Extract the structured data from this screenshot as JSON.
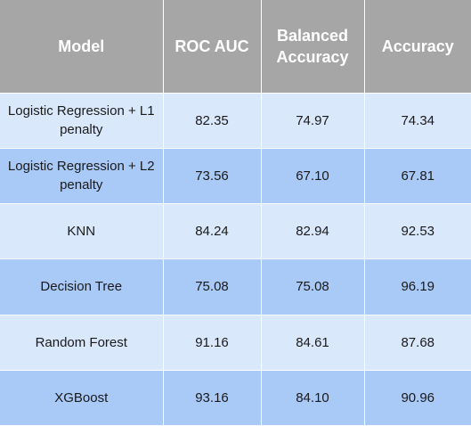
{
  "colors": {
    "header_bg": "#a6a6a6",
    "header_text": "#ffffff",
    "row_light": "#dae8fc",
    "row_dark": "#a9c9f7",
    "cell_text": "#1a1a1a"
  },
  "chart_data": {
    "type": "table",
    "columns": [
      "Model",
      "ROC AUC",
      "Balanced Accuracy",
      "Accuracy"
    ],
    "rows": [
      [
        "Logistic Regression + L1 penalty",
        "82.35",
        "74.97",
        "74.34"
      ],
      [
        "Logistic Regression + L2 penalty",
        "73.56",
        "67.10",
        "67.81"
      ],
      [
        "KNN",
        "84.24",
        "82.94",
        "92.53"
      ],
      [
        "Decision Tree",
        "75.08",
        "75.08",
        "96.19"
      ],
      [
        "Random Forest",
        "91.16",
        "84.61",
        "87.68"
      ],
      [
        "XGBoost",
        "93.16",
        "84.10",
        "90.96"
      ]
    ]
  }
}
